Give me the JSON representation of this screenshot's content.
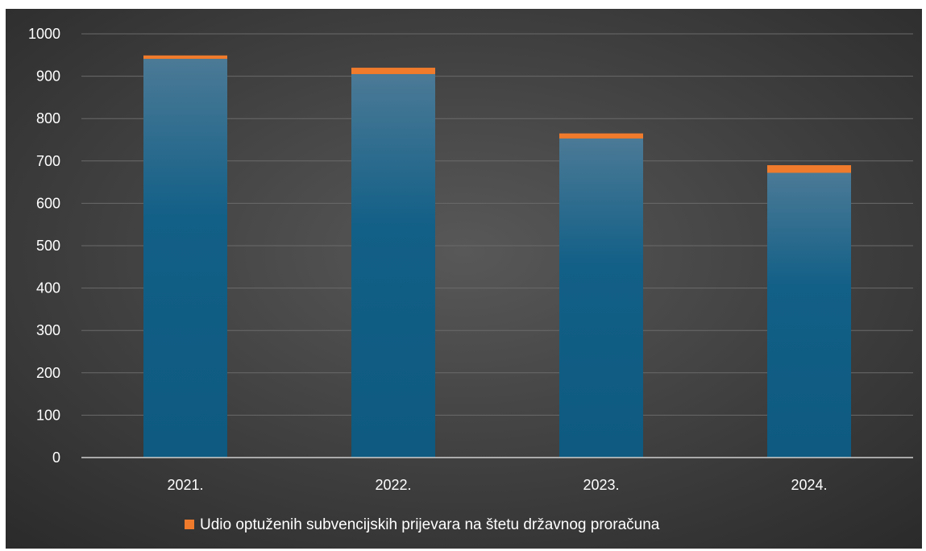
{
  "chart_data": {
    "type": "bar",
    "stacked": true,
    "categories": [
      "2021.",
      "2022.",
      "2023.",
      "2024."
    ],
    "series": [
      {
        "values": [
          941,
          905,
          753,
          672
        ],
        "color": "#0e5a80"
      },
      {
        "name": "Udio optuženih subvencijskih prijevara na štetu državnog proračuna",
        "values": [
          8,
          15,
          12,
          18
        ],
        "color": "#f07b2c"
      }
    ],
    "ylim": [
      0,
      1000
    ],
    "yticks": [
      "0",
      "100",
      "200",
      "300",
      "400",
      "500",
      "600",
      "700",
      "800",
      "900",
      "1000"
    ],
    "grid": true,
    "legend_position": "bottom",
    "background": "#3c3c3c"
  }
}
